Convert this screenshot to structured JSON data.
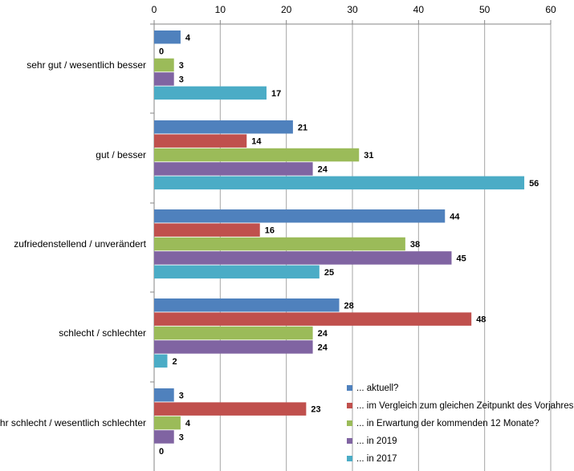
{
  "chart_data": {
    "type": "bar",
    "orientation": "horizontal",
    "categories": [
      "sehr gut / wesentlich besser",
      "gut / besser",
      "zufriedenstellend / unverändert",
      "schlecht / schlechter",
      "sehr schlecht / wesentlich schlechter"
    ],
    "series": [
      {
        "name": "... aktuell?",
        "color": "#4F81BD",
        "values": [
          4,
          21,
          44,
          28,
          3
        ]
      },
      {
        "name": "... im Vergleich zum gleichen Zeitpunkt des Vorjahres?",
        "color": "#C0504D",
        "values": [
          0,
          14,
          16,
          48,
          23
        ]
      },
      {
        "name": "... in Erwartung der kommenden 12 Monate?",
        "color": "#9BBB59",
        "values": [
          3,
          31,
          38,
          24,
          4
        ]
      },
      {
        "name": "... in 2019",
        "color": "#8064A2",
        "values": [
          3,
          24,
          45,
          24,
          3
        ]
      },
      {
        "name": "... in 2017",
        "color": "#4BACC6",
        "values": [
          17,
          56,
          25,
          2,
          0
        ]
      }
    ],
    "xlim": [
      0,
      60
    ],
    "xticks": [
      0,
      10,
      20,
      30,
      40,
      50,
      60
    ],
    "axis_position": "top",
    "grid": true,
    "legend_position": "bottom-right",
    "title": "",
    "xlabel": "",
    "ylabel": ""
  }
}
